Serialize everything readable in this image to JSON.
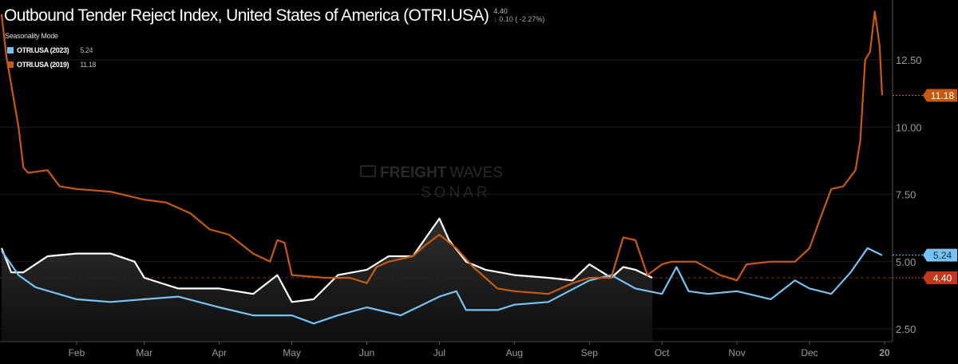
{
  "header": {
    "title": "Outbound Tender Reject Index, United States of America (OTRI.USA)",
    "last_value": "4.40",
    "change": "0.10 ( -2.27%)",
    "change_direction": "down",
    "mode_label": "Seasonality Mode"
  },
  "watermark": {
    "line1_bold": "FREIGHT",
    "line1_light": "WAVES",
    "line2": "SONAR"
  },
  "legend": [
    {
      "label": "OTRI.USA (2023)",
      "value": "5.24",
      "color": "#74c3f5"
    },
    {
      "label": "OTRI.USA (2019)",
      "value": "11.18",
      "color": "#c85a10"
    }
  ],
  "chart_data": {
    "type": "line",
    "title": "Outbound Tender Reject Index, United States of America (OTRI.USA)",
    "y_axis_position": "right",
    "ylim": [
      2.0,
      14.6
    ],
    "y_ticks": [
      "2.50",
      "5.00",
      "7.50",
      "10.00",
      "12.50"
    ],
    "x_ticks": [
      "Feb",
      "Mar",
      "Apr",
      "May",
      "Jun",
      "Jul",
      "Aug",
      "Sep",
      "Oct",
      "Nov",
      "Dec",
      "20"
    ],
    "grid": "horizontal",
    "reference_line": 4.4,
    "series": [
      {
        "name": "OTRI.USA (2019)",
        "color": "#c85a10",
        "end_label": "11.18",
        "points": [
          [
            "01-01",
            14.2
          ],
          [
            "01-03",
            12.6
          ],
          [
            "01-08",
            10.0
          ],
          [
            "01-10",
            8.5
          ],
          [
            "01-12",
            8.3
          ],
          [
            "01-20",
            8.4
          ],
          [
            "01-25",
            7.8
          ],
          [
            "02-01",
            7.7
          ],
          [
            "02-15",
            7.6
          ],
          [
            "03-01",
            7.3
          ],
          [
            "03-10",
            7.2
          ],
          [
            "03-20",
            6.8
          ],
          [
            "03-28",
            6.2
          ],
          [
            "04-05",
            6.0
          ],
          [
            "04-15",
            5.3
          ],
          [
            "04-22",
            5.0
          ],
          [
            "04-25",
            5.8
          ],
          [
            "04-28",
            5.7
          ],
          [
            "05-01",
            4.5
          ],
          [
            "05-15",
            4.4
          ],
          [
            "05-25",
            4.4
          ],
          [
            "06-01",
            4.2
          ],
          [
            "06-05",
            4.8
          ],
          [
            "06-10",
            5.0
          ],
          [
            "06-20",
            5.2
          ],
          [
            "06-25",
            5.6
          ],
          [
            "07-01",
            6.0
          ],
          [
            "07-08",
            5.5
          ],
          [
            "07-15",
            4.8
          ],
          [
            "07-25",
            4.0
          ],
          [
            "08-01",
            3.9
          ],
          [
            "08-15",
            3.8
          ],
          [
            "08-25",
            4.2
          ],
          [
            "09-01",
            4.4
          ],
          [
            "09-10",
            4.4
          ],
          [
            "09-15",
            5.9
          ],
          [
            "09-20",
            5.8
          ],
          [
            "09-25",
            4.5
          ],
          [
            "10-01",
            4.9
          ],
          [
            "10-05",
            5.0
          ],
          [
            "10-15",
            5.0
          ],
          [
            "10-25",
            4.5
          ],
          [
            "11-01",
            4.3
          ],
          [
            "11-05",
            4.9
          ],
          [
            "11-15",
            5.0
          ],
          [
            "11-25",
            5.0
          ],
          [
            "12-01",
            5.5
          ],
          [
            "12-05",
            6.5
          ],
          [
            "12-10",
            7.7
          ],
          [
            "12-15",
            7.8
          ],
          [
            "12-20",
            8.4
          ],
          [
            "12-22",
            9.5
          ],
          [
            "12-24",
            12.5
          ],
          [
            "12-26",
            12.8
          ],
          [
            "12-28",
            14.3
          ],
          [
            "12-30",
            13.0
          ],
          [
            "12-31",
            11.18
          ]
        ]
      },
      {
        "name": "OTRI.USA (2023)",
        "color": "#74c3f5",
        "end_label": "5.24",
        "points": [
          [
            "01-01",
            5.4
          ],
          [
            "01-08",
            4.5
          ],
          [
            "01-15",
            4.05
          ],
          [
            "02-01",
            3.6
          ],
          [
            "02-15",
            3.5
          ],
          [
            "03-01",
            3.6
          ],
          [
            "03-15",
            3.7
          ],
          [
            "04-01",
            3.3
          ],
          [
            "04-15",
            3.0
          ],
          [
            "05-01",
            3.0
          ],
          [
            "05-10",
            2.7
          ],
          [
            "05-20",
            3.0
          ],
          [
            "06-01",
            3.3
          ],
          [
            "06-15",
            3.0
          ],
          [
            "07-01",
            3.7
          ],
          [
            "07-08",
            3.9
          ],
          [
            "07-12",
            3.2
          ],
          [
            "07-25",
            3.2
          ],
          [
            "08-01",
            3.4
          ],
          [
            "08-15",
            3.5
          ],
          [
            "09-01",
            4.3
          ],
          [
            "09-10",
            4.5
          ],
          [
            "09-20",
            4.0
          ],
          [
            "10-01",
            3.8
          ],
          [
            "10-07",
            4.8
          ],
          [
            "10-12",
            3.9
          ],
          [
            "10-20",
            3.8
          ],
          [
            "11-01",
            3.9
          ],
          [
            "11-15",
            3.6
          ],
          [
            "11-25",
            4.3
          ],
          [
            "12-01",
            4.0
          ],
          [
            "12-10",
            3.8
          ],
          [
            "12-18",
            4.6
          ],
          [
            "12-25",
            5.5
          ],
          [
            "12-31",
            5.24
          ]
        ]
      },
      {
        "name": "OTRI.USA",
        "color": "#ffffff",
        "end_label": "4.40",
        "filled": true,
        "points": [
          [
            "01-01",
            5.5
          ],
          [
            "01-05",
            4.6
          ],
          [
            "01-10",
            4.6
          ],
          [
            "01-15",
            4.9
          ],
          [
            "01-20",
            5.2
          ],
          [
            "02-01",
            5.3
          ],
          [
            "02-15",
            5.3
          ],
          [
            "02-25",
            5.0
          ],
          [
            "03-01",
            4.4
          ],
          [
            "03-15",
            4.0
          ],
          [
            "04-01",
            4.0
          ],
          [
            "04-15",
            3.8
          ],
          [
            "04-25",
            4.5
          ],
          [
            "05-01",
            3.5
          ],
          [
            "05-10",
            3.6
          ],
          [
            "05-20",
            4.5
          ],
          [
            "06-01",
            4.7
          ],
          [
            "06-10",
            5.2
          ],
          [
            "06-20",
            5.2
          ],
          [
            "07-01",
            6.6
          ],
          [
            "07-05",
            5.8
          ],
          [
            "07-12",
            5.0
          ],
          [
            "07-20",
            4.7
          ],
          [
            "08-01",
            4.5
          ],
          [
            "08-15",
            4.4
          ],
          [
            "08-25",
            4.3
          ],
          [
            "09-01",
            4.9
          ],
          [
            "09-10",
            4.4
          ],
          [
            "09-15",
            4.8
          ],
          [
            "09-20",
            4.7
          ],
          [
            "09-27",
            4.4
          ]
        ]
      }
    ]
  }
}
